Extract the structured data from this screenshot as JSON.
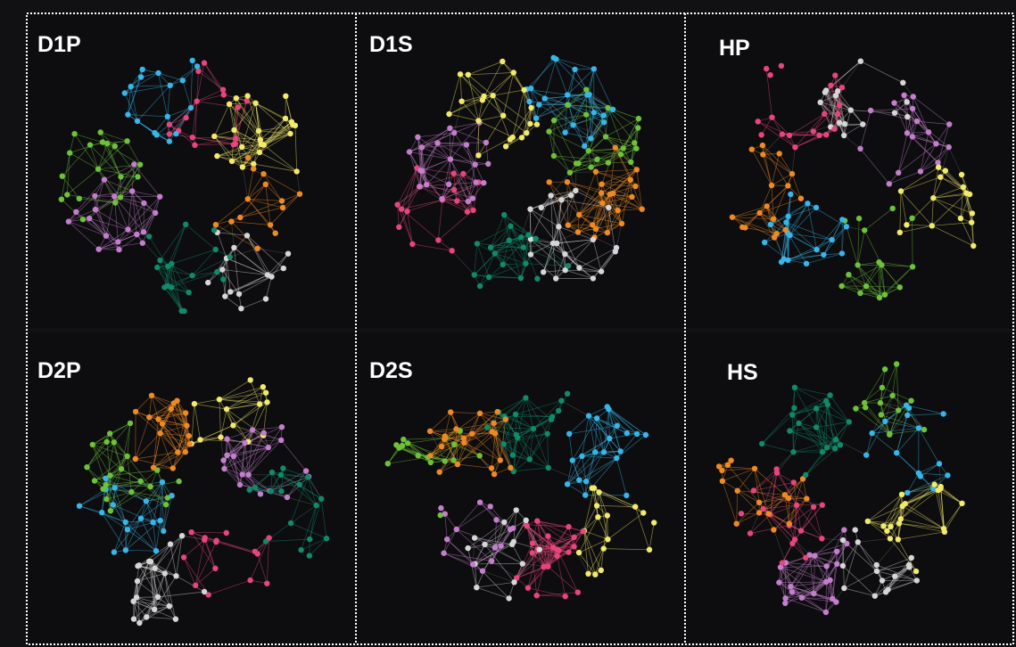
{
  "panels": [
    {
      "id": "d1p",
      "label": "D1P",
      "col": 0,
      "row": 0,
      "seed": 11,
      "clusters": [
        "pink",
        "yellow",
        "orange",
        "gray",
        "teal",
        "purple",
        "green",
        "blue"
      ]
    },
    {
      "id": "d1s",
      "label": "D1S",
      "col": 1,
      "row": 0,
      "seed": 23,
      "clusters": [
        "blue",
        "green",
        "orange",
        "gray",
        "teal",
        "pink",
        "purple",
        "yellow"
      ]
    },
    {
      "id": "hp",
      "label": "HP",
      "col": 2,
      "row": 0,
      "seed": 37,
      "clusters": [
        "gray",
        "purple",
        "yellow",
        "green",
        "blue",
        "orange",
        "pink"
      ]
    },
    {
      "id": "d2p",
      "label": "D2P",
      "col": 0,
      "row": 1,
      "seed": 41,
      "clusters": [
        "yellow",
        "purple",
        "teal",
        "pink",
        "gray",
        "blue",
        "green",
        "orange"
      ]
    },
    {
      "id": "d2s",
      "label": "D2S",
      "col": 1,
      "row": 1,
      "seed": 53,
      "clusters": [
        "teal",
        "blue",
        "yellow",
        "pink",
        "gray",
        "purple",
        "green",
        "orange"
      ]
    },
    {
      "id": "hs",
      "label": "HS",
      "col": 2,
      "row": 1,
      "seed": 67,
      "clusters": [
        "green",
        "blue",
        "yellow",
        "gray",
        "purple",
        "pink",
        "orange",
        "teal"
      ]
    }
  ],
  "colors": {
    "background": "#0d0d0f",
    "pink": "#e8457a",
    "yellow": "#f2ea6a",
    "orange": "#ef8a22",
    "gray": "#d6d6d6",
    "teal": "#0f8a6a",
    "purple": "#c37fcc",
    "green": "#6ec23a",
    "blue": "#36b6ea",
    "border": "#ffffff"
  }
}
